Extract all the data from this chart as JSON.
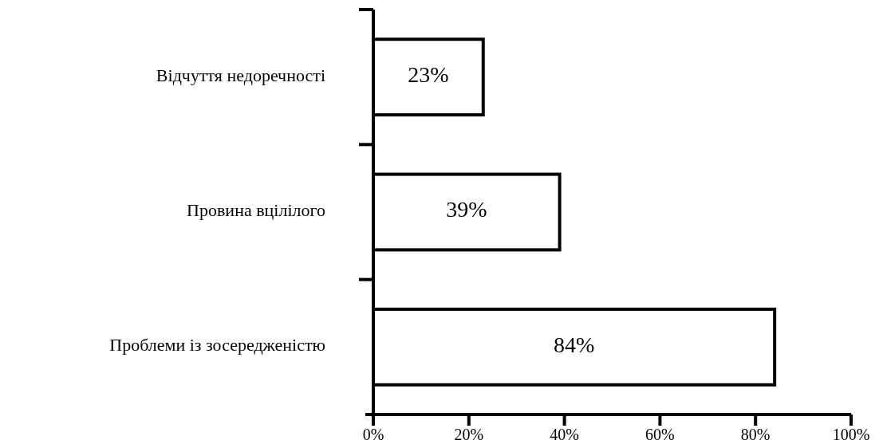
{
  "chart_data": {
    "type": "bar",
    "orientation": "horizontal",
    "categories": [
      "Відчуття недоречності",
      "Провина вцілілого",
      "Проблеми із зосередженістю"
    ],
    "values": [
      23,
      39,
      84
    ],
    "value_labels": [
      "23%",
      "39%",
      "84%"
    ],
    "color": "#ffffff",
    "xlim": [
      0,
      100
    ],
    "xticks": [
      {
        "value": 0,
        "label": "0%"
      },
      {
        "value": 20,
        "label": "20%"
      },
      {
        "value": 40,
        "label": "40%"
      },
      {
        "value": 60,
        "label": "60%"
      },
      {
        "value": 80,
        "label": "80%"
      },
      {
        "value": 100,
        "label": "100%"
      }
    ],
    "grid": false
  }
}
